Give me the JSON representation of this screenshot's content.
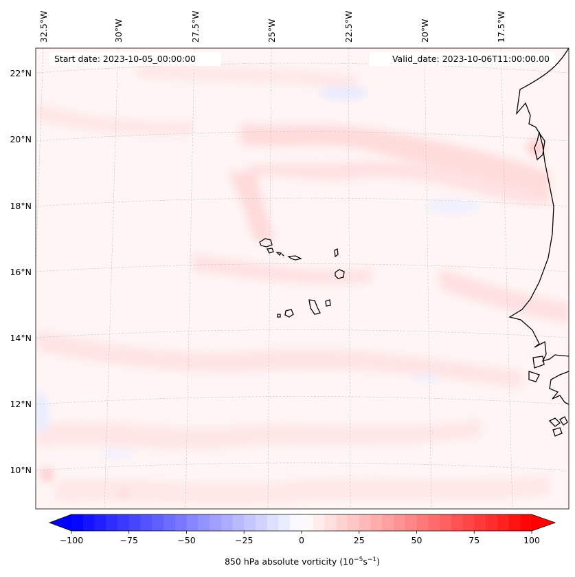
{
  "map": {
    "start_date": "Start date: 2023-10-05_00:00:00",
    "valid_date": "Valid_date: 2023-10-06T11:00:00.00",
    "lon_labels": [
      "32.5°W",
      "30°W",
      "27.5°W",
      "25°W",
      "22.5°W",
      "20°W",
      "17.5°W"
    ],
    "lat_labels": [
      "22°N",
      "20°N",
      "18°N",
      "16°N",
      "14°N",
      "12°N",
      "10°N"
    ],
    "field_colors": {
      "background": "#fff5f5",
      "light_red": "#ffe3e3",
      "mid_red": "#ffd6d6",
      "light_blue": "#eef0ff"
    },
    "coastline_color": "#000000",
    "gridline_color": "#c8c8c8"
  },
  "colorbar": {
    "label_main": "850 hPa absolute vorticity (10",
    "label_sup1": "−5",
    "label_mid": "s",
    "label_sup2": "−1",
    "label_end": ")",
    "ticks": [
      "−100",
      "−75",
      "−50",
      "−25",
      "0",
      "25",
      "50",
      "75",
      "100"
    ],
    "min": -100,
    "max": 100,
    "levels": 40,
    "colormap": "bwr",
    "extend": "both"
  }
}
